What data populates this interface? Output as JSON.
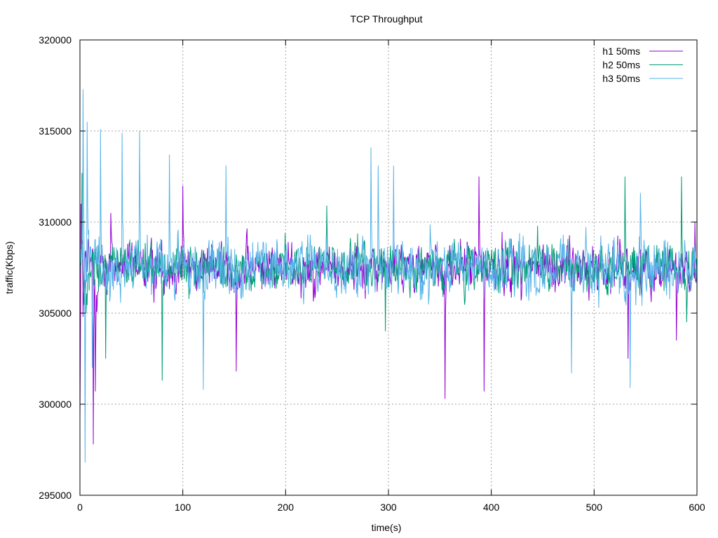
{
  "chart_data": {
    "type": "line",
    "title": "TCP Throughput",
    "xlabel": "time(s)",
    "ylabel": "traffic(Kbps)",
    "xlim": [
      0,
      600
    ],
    "ylim": [
      295000,
      320000
    ],
    "x_ticks": [
      0,
      100,
      200,
      300,
      400,
      500,
      600
    ],
    "y_ticks": [
      295000,
      300000,
      305000,
      310000,
      315000,
      320000
    ],
    "x_tick_labels": [
      "0",
      "100",
      "200",
      "300",
      "400",
      "500",
      "600"
    ],
    "y_tick_labels": [
      "295000",
      "300000",
      "305000",
      "310000",
      "315000",
      "320000"
    ],
    "grid": true,
    "legend_position": "top-right",
    "series": [
      {
        "name": "h1 50ms",
        "color": "#9400d3",
        "sample_interval_s": 0.5,
        "mean": 307500,
        "spread": 1600,
        "notable_points": [
          [
            0,
            299200
          ],
          [
            1,
            311000
          ],
          [
            3,
            304800
          ],
          [
            13,
            297800
          ],
          [
            15,
            300700
          ],
          [
            30,
            310500
          ],
          [
            100,
            312000
          ],
          [
            152,
            301800
          ],
          [
            355,
            300300
          ],
          [
            388,
            312500
          ],
          [
            393,
            300700
          ],
          [
            533,
            302500
          ],
          [
            580,
            303500
          ],
          [
            598,
            310000
          ]
        ]
      },
      {
        "name": "h2 50ms",
        "color": "#009e73",
        "sample_interval_s": 0.5,
        "mean": 307500,
        "spread": 1500,
        "notable_points": [
          [
            2,
            312700
          ],
          [
            6,
            305000
          ],
          [
            25,
            302500
          ],
          [
            80,
            301300
          ],
          [
            240,
            310900
          ],
          [
            297,
            304000
          ],
          [
            445,
            309800
          ],
          [
            530,
            312500
          ],
          [
            585,
            312500
          ],
          [
            590,
            304500
          ]
        ]
      },
      {
        "name": "h3 50ms",
        "color": "#56b4e9",
        "sample_interval_s": 0.5,
        "mean": 307500,
        "spread": 2000,
        "notable_points": [
          [
            3,
            317300
          ],
          [
            5,
            296800
          ],
          [
            7,
            315500
          ],
          [
            12,
            302000
          ],
          [
            20,
            315100
          ],
          [
            41,
            314900
          ],
          [
            58,
            315000
          ],
          [
            87,
            313700
          ],
          [
            120,
            300800
          ],
          [
            142,
            313100
          ],
          [
            283,
            314100
          ],
          [
            290,
            313100
          ],
          [
            305,
            313100
          ],
          [
            478,
            301700
          ],
          [
            535,
            300900
          ],
          [
            545,
            311600
          ]
        ]
      }
    ]
  }
}
